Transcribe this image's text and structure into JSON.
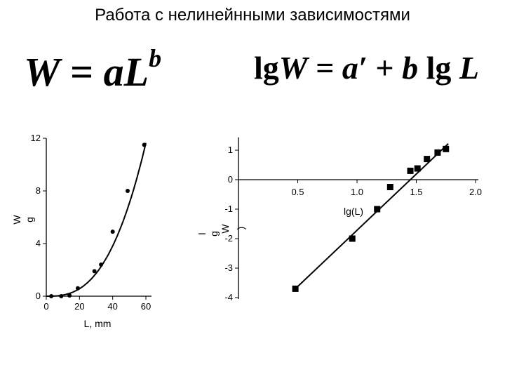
{
  "title": "Работа с нелинейнными зависимостями",
  "formulas": {
    "left": {
      "W": "W",
      "eq": " = ",
      "a": "a",
      "L": "L",
      "b": "b"
    },
    "right": {
      "lg1": "lg",
      "W": "W",
      "eq": " = ",
      "a": "a′",
      "plus": " + ",
      "b": "b",
      "lg2": " lg ",
      "L": "L"
    }
  },
  "chart_data": [
    {
      "type": "scatter",
      "title": "",
      "xlabel": "L, mm",
      "ylabel": "W",
      "ylabel_extra": "g",
      "xlim": [
        0,
        60
      ],
      "ylim": [
        0,
        12
      ],
      "xticks": [
        "0",
        "20",
        "40",
        "60"
      ],
      "yticks": [
        "0",
        "4",
        "8",
        "12"
      ],
      "points": [
        {
          "x": 3,
          "y": 0.0
        },
        {
          "x": 9,
          "y": 0.0
        },
        {
          "x": 14,
          "y": 0.05
        },
        {
          "x": 19,
          "y": 0.6
        },
        {
          "x": 29,
          "y": 1.9
        },
        {
          "x": 33,
          "y": 2.4
        },
        {
          "x": 40,
          "y": 4.9
        },
        {
          "x": 49,
          "y": 8.0
        },
        {
          "x": 59,
          "y": 11.5
        }
      ],
      "fit": {
        "type": "power",
        "a": 0.00015,
        "b": 2.75
      }
    },
    {
      "type": "scatter",
      "title": "",
      "xlabel": "lg(L)",
      "ylabel": "W",
      "ylabel_fragments": [
        "l",
        "g",
        ")"
      ],
      "xlim": [
        0,
        2
      ],
      "ylim": [
        -4,
        1.2
      ],
      "xticks": [
        "0.5",
        "1.0",
        "1.5",
        "2.0"
      ],
      "yticks": [
        "1",
        "0",
        "-1",
        "-2",
        "-3",
        "-4"
      ],
      "points": [
        {
          "x": 0.48,
          "y": -3.7
        },
        {
          "x": 0.96,
          "y": -2.0
        },
        {
          "x": 1.17,
          "y": -1.0
        },
        {
          "x": 1.28,
          "y": -0.25
        },
        {
          "x": 1.45,
          "y": 0.3
        },
        {
          "x": 1.51,
          "y": 0.38
        },
        {
          "x": 1.59,
          "y": 0.7
        },
        {
          "x": 1.68,
          "y": 0.92
        },
        {
          "x": 1.75,
          "y": 1.04
        }
      ],
      "fit": {
        "type": "linear",
        "x": [
          0.48,
          1.77
        ],
        "y": [
          -3.7,
          1.22
        ]
      }
    }
  ]
}
